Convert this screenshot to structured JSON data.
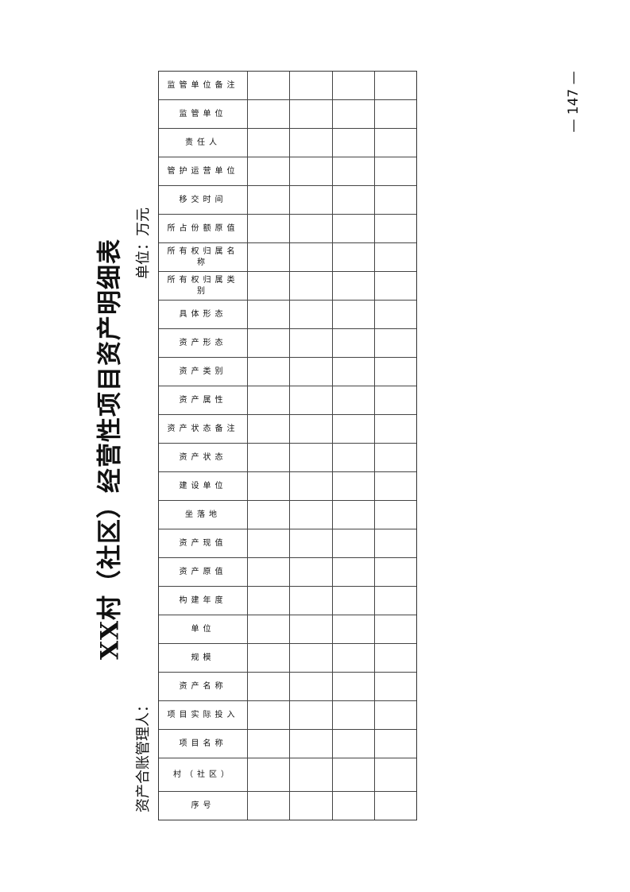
{
  "page": {
    "title": "XX村（社区）经营性项目资产明细表",
    "unit": "单位：万元",
    "manager_label": "资产合账管理人：",
    "page_number": "— 147 —"
  },
  "table": {
    "headers": [
      "序号",
      "村（社区）",
      "项目名称",
      "项目实际投入",
      "资产名称",
      "规模",
      "单位",
      "构建年度",
      "资产原值",
      "资产现值",
      "坐落地",
      "建设单位",
      "资产状态",
      "资产状态备注",
      "资产属性",
      "资产类别",
      "资产形态",
      "具体形态",
      "所有权归属类别",
      "所有权归属名称",
      "所占份额原值",
      "移交时间",
      "管护运营单位",
      "责任人",
      "监管单位",
      "监管单位备注"
    ],
    "rows": [
      [],
      [],
      [],
      []
    ]
  }
}
